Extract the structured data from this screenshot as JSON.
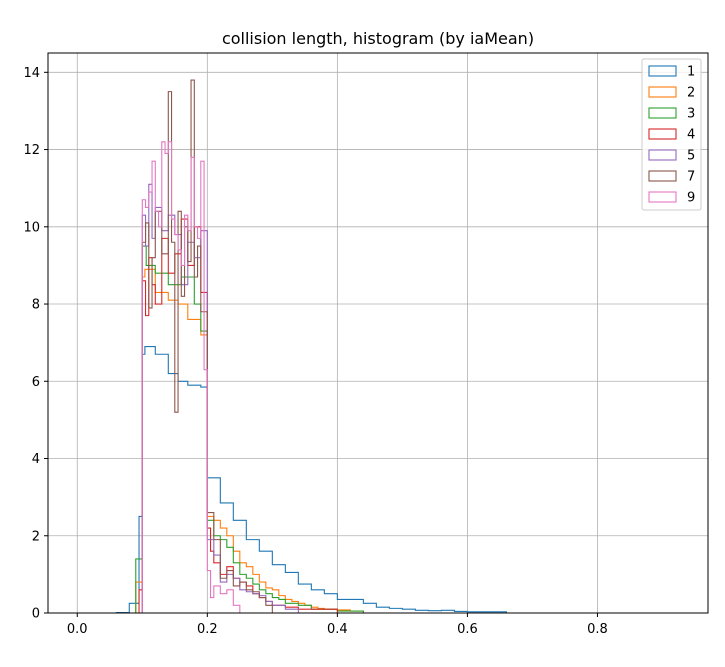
{
  "chart_data": {
    "type": "histogram",
    "title": "collision length, histogram (by iaMean)",
    "xlabel": "",
    "ylabel": "",
    "xlim": [
      -0.045,
      0.97
    ],
    "ylim": [
      0,
      14.5
    ],
    "xticks": [
      0.0,
      0.2,
      0.4,
      0.6,
      0.8
    ],
    "xtick_labels": [
      "0.0",
      "0.2",
      "0.4",
      "0.6",
      "0.8"
    ],
    "yticks": [
      0,
      2,
      4,
      6,
      8,
      10,
      12,
      14
    ],
    "ytick_labels": [
      "0",
      "2",
      "4",
      "6",
      "8",
      "10",
      "12",
      "14"
    ],
    "grid": true,
    "legend_position": "top-right",
    "histtype": "step",
    "series": [
      {
        "name": "1",
        "color": "#1f77b4",
        "edges": [
          0.0,
          0.02,
          0.04,
          0.06,
          0.08,
          0.095,
          0.1,
          0.104,
          0.12,
          0.14,
          0.155,
          0.17,
          0.19,
          0.2,
          0.22,
          0.24,
          0.26,
          0.28,
          0.3,
          0.32,
          0.34,
          0.36,
          0.38,
          0.4,
          0.44,
          0.46,
          0.48,
          0.5,
          0.52,
          0.54,
          0.56,
          0.58,
          0.6,
          0.66
        ],
        "values": [
          0,
          0,
          0,
          0.01,
          0.25,
          2.5,
          6.7,
          6.9,
          6.7,
          6.2,
          6.0,
          5.9,
          5.85,
          3.5,
          2.85,
          2.4,
          1.9,
          1.6,
          1.25,
          1.05,
          0.75,
          0.6,
          0.5,
          0.35,
          0.25,
          0.15,
          0.12,
          0.1,
          0.07,
          0.06,
          0.07,
          0.04,
          0.03
        ]
      },
      {
        "name": "2",
        "color": "#ff7f0e",
        "edges": [
          0.09,
          0.1,
          0.104,
          0.12,
          0.14,
          0.155,
          0.17,
          0.19,
          0.2,
          0.21,
          0.22,
          0.23,
          0.24,
          0.25,
          0.26,
          0.27,
          0.28,
          0.29,
          0.3,
          0.31,
          0.32,
          0.33,
          0.34,
          0.35,
          0.36,
          0.37,
          0.38,
          0.4,
          0.42,
          0.44
        ],
        "values": [
          0.8,
          8.7,
          8.9,
          8.3,
          8.1,
          8.0,
          7.6,
          7.2,
          2.5,
          2.4,
          2.2,
          2.0,
          1.6,
          1.3,
          1.2,
          1.0,
          0.8,
          0.65,
          0.6,
          0.45,
          0.35,
          0.3,
          0.25,
          0.2,
          0.15,
          0.12,
          0.1,
          0.08,
          0.05
        ]
      },
      {
        "name": "3",
        "color": "#2ca02c",
        "edges": [
          0.09,
          0.1,
          0.106,
          0.12,
          0.14,
          0.16,
          0.18,
          0.19,
          0.2,
          0.21,
          0.22,
          0.23,
          0.24,
          0.25,
          0.26,
          0.27,
          0.28,
          0.29,
          0.3,
          0.31,
          0.32,
          0.34,
          0.36,
          0.4,
          0.44
        ],
        "values": [
          1.4,
          9.5,
          9.0,
          8.8,
          8.5,
          8.7,
          8.0,
          7.3,
          2.4,
          2.0,
          1.9,
          1.7,
          1.3,
          1.0,
          0.9,
          0.75,
          0.6,
          0.5,
          0.4,
          0.35,
          0.25,
          0.2,
          0.1,
          0.05
        ]
      },
      {
        "name": "4",
        "color": "#d62728",
        "edges": [
          0.095,
          0.1,
          0.105,
          0.11,
          0.115,
          0.12,
          0.13,
          0.14,
          0.15,
          0.16,
          0.17,
          0.18,
          0.19,
          0.2,
          0.205,
          0.21,
          0.22,
          0.23,
          0.24,
          0.25,
          0.26,
          0.27,
          0.28,
          0.29,
          0.3,
          0.32,
          0.34,
          0.4
        ],
        "values": [
          0.6,
          8.6,
          7.7,
          9.2,
          8.5,
          8.0,
          9.7,
          8.8,
          9.3,
          10.2,
          9.0,
          10.0,
          8.3,
          2.2,
          1.6,
          1.3,
          1.0,
          1.2,
          0.9,
          0.8,
          0.7,
          0.5,
          0.4,
          0.3,
          0.2,
          0.15,
          0.1
        ]
      },
      {
        "name": "5",
        "color": "#9467bd",
        "edges": [
          0.1,
          0.105,
          0.11,
          0.115,
          0.12,
          0.13,
          0.14,
          0.15,
          0.16,
          0.17,
          0.18,
          0.19,
          0.2,
          0.21,
          0.22,
          0.23,
          0.24,
          0.25,
          0.26,
          0.27,
          0.28,
          0.29,
          0.3,
          0.32,
          0.34
        ],
        "values": [
          10.3,
          9.5,
          11.1,
          9.7,
          10.5,
          9.9,
          10.3,
          9.8,
          8.5,
          9.6,
          9.2,
          9.9,
          1.9,
          1.5,
          0.8,
          1.0,
          0.9,
          0.6,
          0.55,
          0.5,
          0.45,
          0.3,
          0.2,
          0.1
        ]
      },
      {
        "name": "7",
        "color": "#8c564b",
        "edges": [
          0.1,
          0.105,
          0.11,
          0.115,
          0.12,
          0.13,
          0.14,
          0.145,
          0.15,
          0.155,
          0.16,
          0.165,
          0.17,
          0.175,
          0.18,
          0.185,
          0.19,
          0.2,
          0.21,
          0.22,
          0.23,
          0.24,
          0.25,
          0.26,
          0.27,
          0.28,
          0.29,
          0.3
        ],
        "values": [
          9.6,
          10.1,
          7.9,
          9.2,
          10.4,
          9.3,
          13.5,
          9.6,
          5.2,
          10.4,
          8.2,
          10.0,
          9.1,
          13.8,
          8.7,
          9.5,
          7.8,
          2.6,
          1.9,
          0.9,
          1.1,
          0.7,
          0.8,
          0.6,
          0.55,
          0.4,
          0.2
        ]
      },
      {
        "name": "9",
        "color": "#e377c2",
        "edges": [
          0.1,
          0.105,
          0.11,
          0.115,
          0.12,
          0.125,
          0.13,
          0.135,
          0.14,
          0.145,
          0.15,
          0.155,
          0.16,
          0.165,
          0.17,
          0.175,
          0.18,
          0.185,
          0.19,
          0.195,
          0.2,
          0.205,
          0.21,
          0.22,
          0.23,
          0.24,
          0.25
        ],
        "values": [
          10.7,
          10.5,
          10.9,
          11.7,
          10.4,
          10.0,
          12.2,
          11.9,
          12.2,
          10.2,
          9.8,
          9.4,
          9.0,
          10.3,
          9.9,
          11.8,
          10.0,
          9.7,
          11.7,
          6.3,
          1.1,
          0.4,
          0.7,
          0.5,
          0.6,
          0.2
        ]
      }
    ]
  }
}
